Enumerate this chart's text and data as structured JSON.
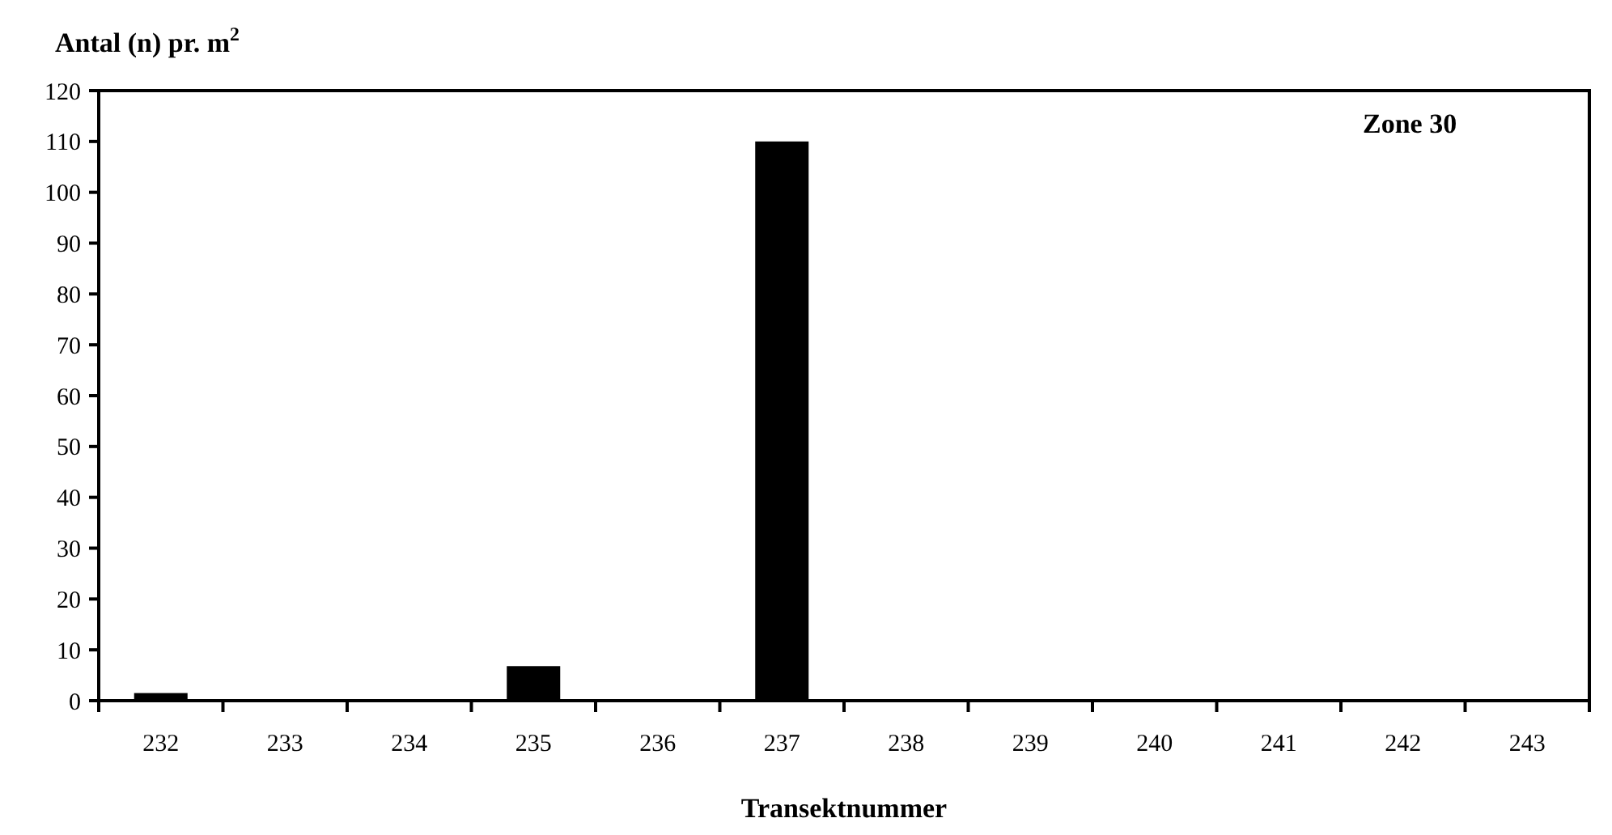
{
  "chart_data": {
    "type": "bar",
    "categories": [
      "232",
      "233",
      "234",
      "235",
      "236",
      "237",
      "238",
      "239",
      "240",
      "241",
      "242",
      "243"
    ],
    "values": [
      1.5,
      0,
      0,
      6.8,
      0,
      110,
      0,
      0,
      0,
      0,
      0,
      0
    ],
    "color": "#000000",
    "ylim": [
      0,
      120
    ],
    "yticks": [
      0,
      10,
      20,
      30,
      40,
      50,
      60,
      70,
      80,
      90,
      100,
      110,
      120
    ],
    "ylabel": "Antal (n) pr. m$^{2}$",
    "xlabel": "Transektnummer",
    "annotations": [
      "Zone 30"
    ],
    "grid": false
  }
}
